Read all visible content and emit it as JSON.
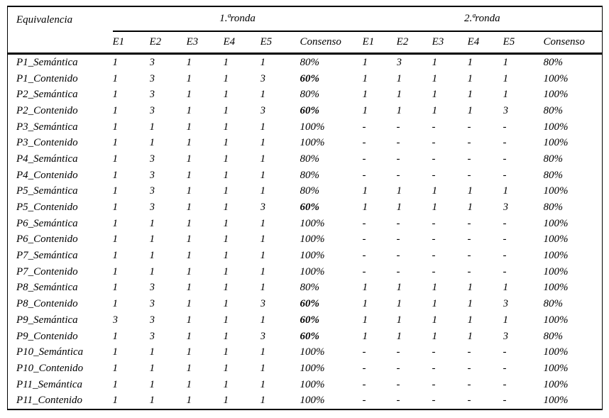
{
  "table": {
    "corner_header": "Equivalencia",
    "group_headers": {
      "round1": "1.ªronda",
      "round2": "2.ªronda"
    },
    "sub_headers": [
      "E1",
      "E2",
      "E3",
      "E4",
      "E5",
      "Consenso",
      "E1",
      "E2",
      "E3",
      "E4",
      "E5",
      "Consenso"
    ],
    "rows": [
      {
        "label": "P1_Semántica",
        "round1": [
          "1",
          "3",
          "1",
          "1",
          "1"
        ],
        "consenso1": "80%",
        "consenso1_bold": false,
        "round2": [
          "1",
          "3",
          "1",
          "1",
          "1"
        ],
        "consenso2": "80%"
      },
      {
        "label": "P1_Contenido",
        "round1": [
          "1",
          "3",
          "1",
          "1",
          "3"
        ],
        "consenso1": "60%",
        "consenso1_bold": true,
        "round2": [
          "1",
          "1",
          "1",
          "1",
          "1"
        ],
        "consenso2": "100%"
      },
      {
        "label": "P2_Semántica",
        "round1": [
          "1",
          "3",
          "1",
          "1",
          "1"
        ],
        "consenso1": "80%",
        "consenso1_bold": false,
        "round2": [
          "1",
          "1",
          "1",
          "1",
          "1"
        ],
        "consenso2": "100%"
      },
      {
        "label": "P2_Contenido",
        "round1": [
          "1",
          "3",
          "1",
          "1",
          "3"
        ],
        "consenso1": "60%",
        "consenso1_bold": true,
        "round2": [
          "1",
          "1",
          "1",
          "1",
          "3"
        ],
        "consenso2": "80%"
      },
      {
        "label": "P3_Semántica",
        "round1": [
          "1",
          "1",
          "1",
          "1",
          "1"
        ],
        "consenso1": "100%",
        "consenso1_bold": false,
        "round2": [
          "-",
          "-",
          "-",
          "-",
          "-"
        ],
        "consenso2": "100%"
      },
      {
        "label": "P3_Contenido",
        "round1": [
          "1",
          "1",
          "1",
          "1",
          "1"
        ],
        "consenso1": "100%",
        "consenso1_bold": false,
        "round2": [
          "-",
          "-",
          "-",
          "-",
          "-"
        ],
        "consenso2": "100%"
      },
      {
        "label": "P4_Semántica",
        "round1": [
          "1",
          "3",
          "1",
          "1",
          "1"
        ],
        "consenso1": "80%",
        "consenso1_bold": false,
        "round2": [
          "-",
          "-",
          "-",
          "-",
          "-"
        ],
        "consenso2": "80%"
      },
      {
        "label": "P4_Contenido",
        "round1": [
          "1",
          "3",
          "1",
          "1",
          "1"
        ],
        "consenso1": "80%",
        "consenso1_bold": false,
        "round2": [
          "-",
          "-",
          "-",
          "-",
          "-"
        ],
        "consenso2": "80%"
      },
      {
        "label": "P5_Semántica",
        "round1": [
          "1",
          "3",
          "1",
          "1",
          "1"
        ],
        "consenso1": "80%",
        "consenso1_bold": false,
        "round2": [
          "1",
          "1",
          "1",
          "1",
          "1"
        ],
        "consenso2": "100%"
      },
      {
        "label": "P5_Contenido",
        "round1": [
          "1",
          "3",
          "1",
          "1",
          "3"
        ],
        "consenso1": "60%",
        "consenso1_bold": true,
        "round2": [
          "1",
          "1",
          "1",
          "1",
          "3"
        ],
        "consenso2": "80%"
      },
      {
        "label": "P6_Semántica",
        "round1": [
          "1",
          "1",
          "1",
          "1",
          "1"
        ],
        "consenso1": "100%",
        "consenso1_bold": false,
        "round2": [
          "-",
          "-",
          "-",
          "-",
          "-"
        ],
        "consenso2": "100%"
      },
      {
        "label": "P6_Contenido",
        "round1": [
          "1",
          "1",
          "1",
          "1",
          "1"
        ],
        "consenso1": "100%",
        "consenso1_bold": false,
        "round2": [
          "-",
          "-",
          "-",
          "-",
          "-"
        ],
        "consenso2": "100%"
      },
      {
        "label": "P7_Semántica",
        "round1": [
          "1",
          "1",
          "1",
          "1",
          "1"
        ],
        "consenso1": "100%",
        "consenso1_bold": false,
        "round2": [
          "-",
          "-",
          "-",
          "-",
          "-"
        ],
        "consenso2": "100%"
      },
      {
        "label": "P7_Contenido",
        "round1": [
          "1",
          "1",
          "1",
          "1",
          "1"
        ],
        "consenso1": "100%",
        "consenso1_bold": false,
        "round2": [
          "-",
          "-",
          "-",
          "-",
          "-"
        ],
        "consenso2": "100%"
      },
      {
        "label": "P8_Semántica",
        "round1": [
          "1",
          "3",
          "1",
          "1",
          "1"
        ],
        "consenso1": "80%",
        "consenso1_bold": false,
        "round2": [
          "1",
          "1",
          "1",
          "1",
          "1"
        ],
        "consenso2": "100%"
      },
      {
        "label": "P8_Contenido",
        "round1": [
          "1",
          "3",
          "1",
          "1",
          "3"
        ],
        "consenso1": "60%",
        "consenso1_bold": true,
        "round2": [
          "1",
          "1",
          "1",
          "1",
          "3"
        ],
        "consenso2": "80%"
      },
      {
        "label": "P9_Semántica",
        "round1": [
          "3",
          "3",
          "1",
          "1",
          "1"
        ],
        "consenso1": "60%",
        "consenso1_bold": true,
        "round2": [
          "1",
          "1",
          "1",
          "1",
          "1"
        ],
        "consenso2": "100%"
      },
      {
        "label": "P9_Contenido",
        "round1": [
          "1",
          "3",
          "1",
          "1",
          "3"
        ],
        "consenso1": "60%",
        "consenso1_bold": true,
        "round2": [
          "1",
          "1",
          "1",
          "1",
          "3"
        ],
        "consenso2": "80%"
      },
      {
        "label": "P10_Semántica",
        "round1": [
          "1",
          "1",
          "1",
          "1",
          "1"
        ],
        "consenso1": "100%",
        "consenso1_bold": false,
        "round2": [
          "-",
          "-",
          "-",
          "-",
          "-"
        ],
        "consenso2": "100%"
      },
      {
        "label": "P10_Contenido",
        "round1": [
          "1",
          "1",
          "1",
          "1",
          "1"
        ],
        "consenso1": "100%",
        "consenso1_bold": false,
        "round2": [
          "-",
          "-",
          "-",
          "-",
          "-"
        ],
        "consenso2": "100%"
      },
      {
        "label": "P11_Semántica",
        "round1": [
          "1",
          "1",
          "1",
          "1",
          "1"
        ],
        "consenso1": "100%",
        "consenso1_bold": false,
        "round2": [
          "-",
          "-",
          "-",
          "-",
          "-"
        ],
        "consenso2": "100%"
      },
      {
        "label": "P11_Contenido",
        "round1": [
          "1",
          "1",
          "1",
          "1",
          "1"
        ],
        "consenso1": "100%",
        "consenso1_bold": false,
        "round2": [
          "-",
          "-",
          "-",
          "-",
          "-"
        ],
        "consenso2": "100%"
      }
    ]
  }
}
